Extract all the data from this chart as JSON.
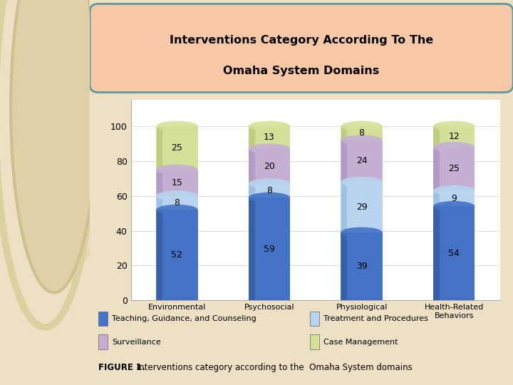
{
  "title_line1": "Interventions Category According To The",
  "title_line2": "Omaha System Domains",
  "categories": [
    "Environmental",
    "Psychosocial",
    "Physiological",
    "Health-Related\nBehaviors"
  ],
  "series_names": [
    "Teaching, Guidance, and Counseling",
    "Treatment and Procedures",
    "Surveillance",
    "Case Management"
  ],
  "series_values": {
    "Teaching, Guidance, and Counseling": [
      52,
      59,
      39,
      54
    ],
    "Treatment and Procedures": [
      8,
      8,
      29,
      9
    ],
    "Surveillance": [
      15,
      20,
      24,
      25
    ],
    "Case Management": [
      25,
      13,
      8,
      12
    ]
  },
  "colors": {
    "Teaching, Guidance, and Counseling": "#4472C4",
    "Treatment and Procedures": "#B8D4F0",
    "Surveillance": "#C5B0D4",
    "Case Management": "#D4E09A"
  },
  "dark_colors": {
    "Teaching, Guidance, and Counseling": "#2E5090",
    "Treatment and Procedures": "#85B0D8",
    "Surveillance": "#A08AB8",
    "Case Management": "#AABE6A"
  },
  "ylim": [
    0,
    115
  ],
  "yticks": [
    0,
    20,
    40,
    60,
    80,
    100
  ],
  "figure_caption_bold": "FIGURE 1.",
  "figure_caption_normal": " Interventions category according to the  Omaha System domains",
  "bg_color": "#EDE0C4",
  "sidebar_color": "#E8D8A8",
  "white_bg": "#FFFFFF",
  "title_box_fill": "#F7C8A8",
  "title_box_border": "#5B9B9B",
  "chart_border": "#AAAAAA"
}
